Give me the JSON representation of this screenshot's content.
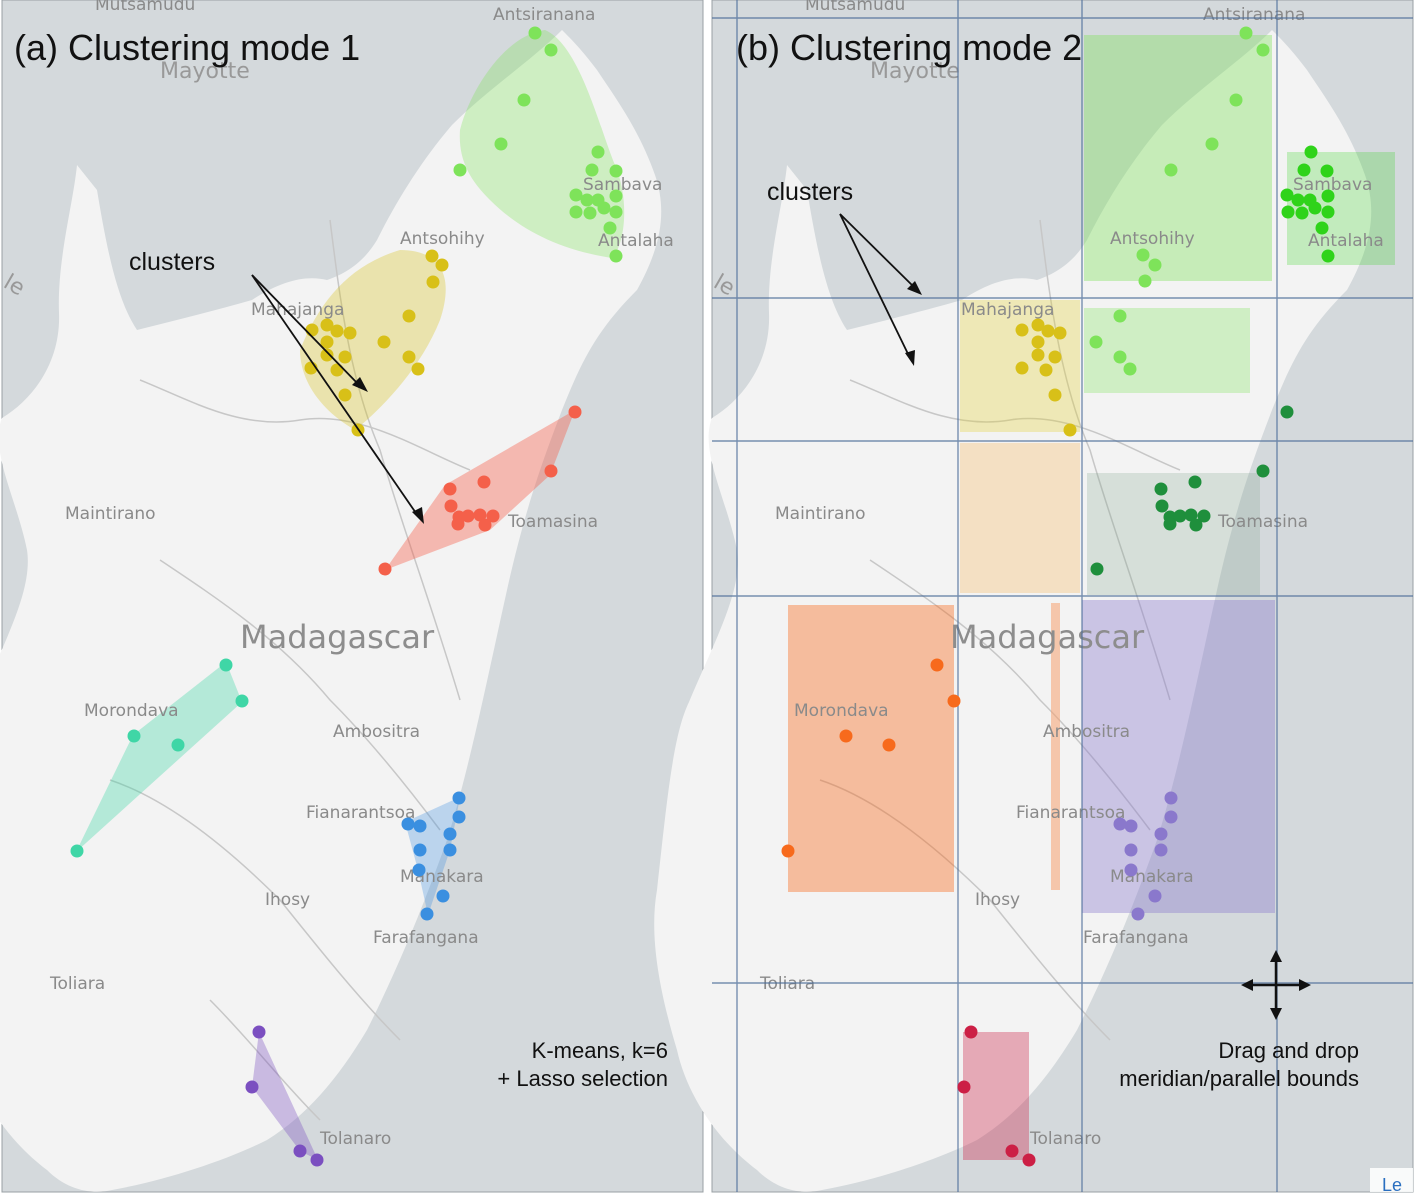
{
  "colors": {
    "ocean": "#d4d9dc",
    "land": "#f3f3f3",
    "green_light": "#7ee35a",
    "green_bright": "#2fd31a",
    "yellow": "#d8c018",
    "red": "#f4604a",
    "teal": "#3fd6a6",
    "blue": "#3a8fe0",
    "purple": "#7b4fc0",
    "orange": "#f76a1c",
    "crimson": "#cc1f45",
    "dark_green": "#1f8f3c",
    "lavender": "#8a78cc",
    "grid": "#4d6e9a"
  },
  "map_labels": {
    "country": "Madagascar",
    "mayotte": "Mayotte",
    "mutsamudu": "Mutsamudu",
    "island_fragment": "le",
    "cities": {
      "antsiranana": "Antsiranana",
      "sambava": "Sambava",
      "antalaha": "Antalaha",
      "antsohihy": "Antsohihy",
      "mahajanga": "Mahajanga",
      "maintirano": "Maintirano",
      "toamasina": "Toamasina",
      "morondava": "Morondava",
      "ambositra": "Ambositra",
      "fianarantsoa": "Fianarantsoa",
      "ihosy": "Ihosy",
      "manakara": "Manakara",
      "farafangana": "Farafangana",
      "toliara": "Toliara",
      "tolanaro": "Tolanaro"
    }
  },
  "panel_a": {
    "title": "(a) Clustering mode 1",
    "annotation": "clusters",
    "note_line1": "K-means, k=6",
    "note_line2": "+ Lasso selection"
  },
  "panel_b": {
    "title": "(b) Clustering mode 2",
    "annotation": "clusters",
    "note_line1": "Drag and drop",
    "note_line2": "meridian/parallel bounds",
    "attribution_fragment": "Le"
  }
}
